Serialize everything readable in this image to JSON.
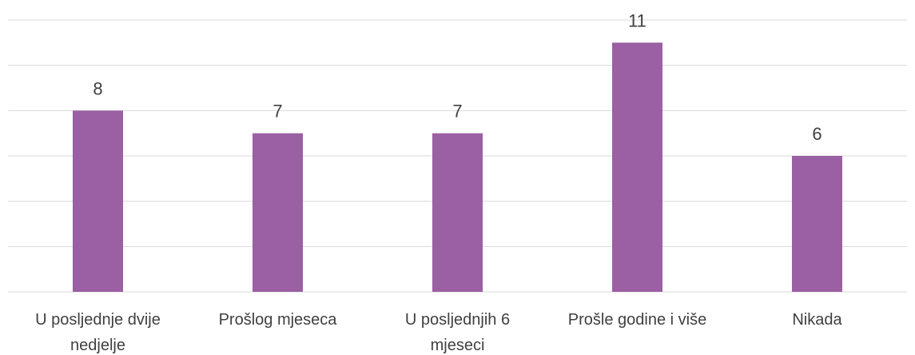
{
  "chart_data": {
    "type": "bar",
    "categories": [
      "U posljednje dvije nedjelje",
      "Prošlog mjeseca",
      "U posljednjih 6 mjeseci",
      "Prošle godine i više",
      "Nikada"
    ],
    "values": [
      8,
      7,
      7,
      11,
      6
    ],
    "color": "#9b5fa3",
    "ylim": [
      0,
      12
    ],
    "yticks": [
      0,
      2,
      4,
      6,
      8,
      10,
      12
    ],
    "grid": true
  }
}
